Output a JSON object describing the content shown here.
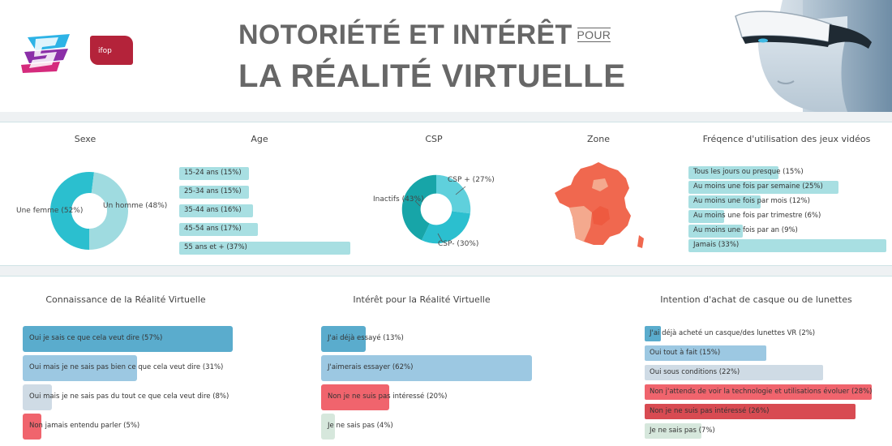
{
  "header": {
    "title_line1": "NOTORIÉTÉ ET INTÉRÊT",
    "title_pour": "POUR",
    "title_line2": "LA RÉALITÉ VIRTUELLE",
    "logo2_text": "ifop"
  },
  "colors": {
    "teal": "#2bbfcf",
    "teal_light": "#9fdbe0",
    "teal_dark": "#17a5a8",
    "bar_blue": "#5aaccd",
    "bar_light_blue": "#9cc8e2",
    "bar_grey": "#cfdbe5",
    "bar_red": "#f0646d",
    "bar_dark_red": "#d84b52",
    "bar_pale_green": "#d6e7dc",
    "map_orange": "#f0684f",
    "map_light": "#f4a98e"
  },
  "chart_data": [
    {
      "type": "pie",
      "title": "Sexe",
      "categories": [
        "Une femme (52%)",
        "Un homme (48%)"
      ],
      "values": [
        52,
        48
      ],
      "colors": [
        "#2bbfcf",
        "#9fdbe0"
      ]
    },
    {
      "type": "bar",
      "orientation": "horizontal",
      "title": "Age",
      "categories": [
        "15-24 ans (15%)",
        "25-34 ans (15%)",
        "35-44 ans (16%)",
        "45-54 ans (17%)",
        "55 ans et + (37%)"
      ],
      "values": [
        15,
        15,
        16,
        17,
        37
      ],
      "color": "#a8dfe2"
    },
    {
      "type": "pie",
      "title": "CSP",
      "categories": [
        "CSP + (27%)",
        "CSP- (30%)",
        "Inactifs (43%)"
      ],
      "values": [
        27,
        30,
        43
      ],
      "colors": [
        "#5fd0dc",
        "#2bbfcf",
        "#17a5a8"
      ]
    },
    {
      "type": "map",
      "title": "Zone"
    },
    {
      "type": "bar",
      "orientation": "horizontal",
      "title": "Fréqence d'utilisation des jeux vidéos",
      "categories": [
        "Tous les jours ou presque (15%)",
        "Au moins une fois par semaine (25%)",
        "Au moins une fois par mois (12%)",
        "Au moins une fois par trimestre (6%)",
        "Au moins une fois par an (9%)",
        "Jamais (33%)"
      ],
      "values": [
        15,
        25,
        12,
        6,
        9,
        33
      ],
      "color": "#a8dfe2"
    },
    {
      "type": "bar",
      "orientation": "horizontal",
      "title": "Connaissance de la Réalité Virtuelle",
      "categories": [
        "Oui je sais ce que cela veut dire (57%)",
        "Oui mais je ne sais pas bien ce que cela veut dire (31%)",
        "Oui mais je ne sais pas du tout ce que cela veut dire (8%)",
        "Non jamais entendu parler (5%)"
      ],
      "values": [
        57,
        31,
        8,
        5
      ],
      "colors": [
        "#5aaccd",
        "#9cc8e2",
        "#cfdbe5",
        "#f0646d"
      ]
    },
    {
      "type": "bar",
      "orientation": "horizontal",
      "title": "Intérêt pour la Réalité Virtuelle",
      "categories": [
        "J'ai déjà essayé (13%)",
        "J'aimerais essayer (62%)",
        "Non je ne suis pas intéressé (20%)",
        "Je ne sais pas (4%)"
      ],
      "values": [
        13,
        62,
        20,
        4
      ],
      "colors": [
        "#5aaccd",
        "#9cc8e2",
        "#f0646d",
        "#d6e7dc"
      ]
    },
    {
      "type": "bar",
      "orientation": "horizontal",
      "title": "Intention d'achat de casque ou de lunettes",
      "categories": [
        "J'ai déjà acheté un casque/des lunettes VR (2%)",
        "Oui tout à fait (15%)",
        "Oui sous conditions (22%)",
        "Non j'attends de voir la technologie et utilisations évoluer (28%)",
        "Non je ne suis pas intéressé (26%)",
        "Je ne sais pas (7%)"
      ],
      "values": [
        2,
        15,
        22,
        28,
        26,
        7
      ],
      "colors": [
        "#5aaccd",
        "#9cc8e2",
        "#cfdbe5",
        "#f0646d",
        "#d84b52",
        "#d6e7dc"
      ]
    }
  ]
}
